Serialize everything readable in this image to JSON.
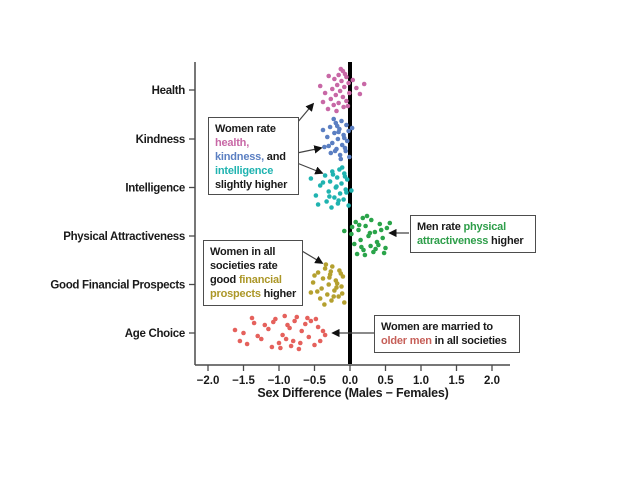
{
  "chart_data": {
    "type": "scatter",
    "title": "",
    "xlabel": "Sex Difference (Males − Females)",
    "xlim": [
      -2.2,
      2.25
    ],
    "x_ticks": [
      -2.0,
      -1.5,
      -1.0,
      -0.5,
      0.0,
      0.5,
      1.0,
      1.5,
      2.0
    ],
    "x_tick_labels": [
      "−2.0",
      "−1.5",
      "−1.0",
      "−0.5",
      "0.0",
      "0.5",
      "1.0",
      "1.5",
      "2.0"
    ],
    "zero_line_x": 0.0,
    "grid": false,
    "legend": "none",
    "categories": [
      "Health",
      "Kindness",
      "Intelligence",
      "Physical Attractiveness",
      "Good Financial Prospects",
      "Age Choice"
    ],
    "series": [
      {
        "name": "Health",
        "color": "#c868a6",
        "points": [
          [
            -0.1,
            -19
          ],
          [
            -0.16,
            -15
          ],
          [
            -0.05,
            -13
          ],
          [
            -0.22,
            -11
          ],
          [
            -0.12,
            -9
          ],
          [
            -0.3,
            -14
          ],
          [
            -0.02,
            -7
          ],
          [
            -0.18,
            -5
          ],
          [
            -0.08,
            -3
          ],
          [
            -0.25,
            -1
          ],
          [
            -0.14,
            1
          ],
          [
            -0.01,
            3
          ],
          [
            -0.2,
            5
          ],
          [
            -0.35,
            3
          ],
          [
            -0.1,
            7
          ],
          [
            -0.27,
            9
          ],
          [
            -0.05,
            11
          ],
          [
            -0.16,
            13
          ],
          [
            -0.23,
            15
          ],
          [
            -0.09,
            17
          ],
          [
            -0.31,
            19
          ],
          [
            -0.13,
            -21
          ],
          [
            0.04,
            -10
          ],
          [
            0.09,
            -2
          ],
          [
            0.14,
            4
          ],
          [
            -0.42,
            -4
          ],
          [
            -0.38,
            12
          ],
          [
            -0.03,
            16
          ],
          [
            -0.19,
            21
          ],
          [
            -0.07,
            -16
          ],
          [
            0.2,
            -6
          ]
        ]
      },
      {
        "name": "Kindness",
        "color": "#5b7fc2",
        "points": [
          [
            -0.12,
            -18
          ],
          [
            -0.2,
            -16
          ],
          [
            -0.05,
            -14
          ],
          [
            -0.28,
            -12
          ],
          [
            -0.15,
            -10
          ],
          [
            -0.02,
            -8
          ],
          [
            -0.22,
            -6
          ],
          [
            -0.09,
            -4
          ],
          [
            -0.32,
            -2
          ],
          [
            -0.17,
            0
          ],
          [
            -0.04,
            2
          ],
          [
            -0.25,
            4
          ],
          [
            -0.11,
            6
          ],
          [
            -0.36,
            8
          ],
          [
            -0.19,
            10
          ],
          [
            -0.06,
            12
          ],
          [
            -0.27,
            14
          ],
          [
            -0.14,
            16
          ],
          [
            -0.01,
            18
          ],
          [
            -0.23,
            -20
          ],
          [
            -0.08,
            -1
          ],
          [
            -0.3,
            7
          ],
          [
            -0.16,
            -7
          ],
          [
            0.03,
            -11
          ],
          [
            -0.13,
            20
          ],
          [
            -0.21,
            12
          ],
          [
            -0.38,
            -9
          ],
          [
            -0.07,
            9
          ],
          [
            -0.18,
            -13
          ]
        ]
      },
      {
        "name": "Intelligence",
        "color": "#1fb3b0",
        "points": [
          [
            -0.15,
            -18
          ],
          [
            -0.25,
            -16
          ],
          [
            -0.08,
            -14
          ],
          [
            -0.35,
            -12
          ],
          [
            -0.18,
            -10
          ],
          [
            -0.04,
            -8
          ],
          [
            -0.28,
            -6
          ],
          [
            -0.12,
            -4
          ],
          [
            -0.42,
            -2
          ],
          [
            -0.2,
            0
          ],
          [
            -0.06,
            2
          ],
          [
            -0.3,
            4
          ],
          [
            -0.14,
            6
          ],
          [
            -0.48,
            8
          ],
          [
            -0.22,
            10
          ],
          [
            -0.09,
            12
          ],
          [
            -0.33,
            14
          ],
          [
            -0.17,
            16
          ],
          [
            -0.02,
            18
          ],
          [
            -0.26,
            20
          ],
          [
            -0.11,
            -20
          ],
          [
            -0.38,
            -5
          ],
          [
            -0.55,
            -9
          ],
          [
            -0.19,
            -1
          ],
          [
            -0.05,
            5
          ],
          [
            -0.29,
            9
          ],
          [
            -0.16,
            13
          ],
          [
            -0.45,
            17
          ],
          [
            -0.07,
            -11
          ],
          [
            -0.24,
            -13
          ],
          [
            0.02,
            3
          ]
        ]
      },
      {
        "name": "Physical Attractiveness",
        "color": "#2aa44a",
        "points": [
          [
            0.18,
            -18
          ],
          [
            0.3,
            -16
          ],
          [
            0.08,
            -14
          ],
          [
            0.42,
            -12
          ],
          [
            0.22,
            -10
          ],
          [
            0.52,
            -8
          ],
          [
            0.12,
            -6
          ],
          [
            0.35,
            -4
          ],
          [
            0.02,
            -2
          ],
          [
            0.26,
            0
          ],
          [
            0.46,
            2
          ],
          [
            0.15,
            4
          ],
          [
            0.38,
            6
          ],
          [
            0.06,
            8
          ],
          [
            0.29,
            10
          ],
          [
            0.5,
            12
          ],
          [
            0.19,
            14
          ],
          [
            0.33,
            16
          ],
          [
            0.1,
            18
          ],
          [
            0.24,
            -20
          ],
          [
            0.44,
            -6
          ],
          [
            0.56,
            -13
          ],
          [
            0.03,
            -9
          ],
          [
            0.28,
            -3
          ],
          [
            0.4,
            9
          ],
          [
            0.16,
            11
          ],
          [
            0.21,
            19
          ],
          [
            0.36,
            13
          ],
          [
            -0.08,
            -5
          ],
          [
            0.48,
            17
          ],
          [
            0.13,
            -11
          ]
        ]
      },
      {
        "name": "Good Financial Prospects",
        "color": "#b4a02f",
        "points": [
          [
            -0.25,
            -18
          ],
          [
            -0.35,
            -16
          ],
          [
            -0.15,
            -14
          ],
          [
            -0.45,
            -12
          ],
          [
            -0.28,
            -10
          ],
          [
            -0.1,
            -8
          ],
          [
            -0.38,
            -6
          ],
          [
            -0.2,
            -4
          ],
          [
            -0.52,
            -2
          ],
          [
            -0.3,
            0
          ],
          [
            -0.12,
            2
          ],
          [
            -0.4,
            4
          ],
          [
            -0.22,
            6
          ],
          [
            -0.55,
            8
          ],
          [
            -0.32,
            10
          ],
          [
            -0.16,
            12
          ],
          [
            -0.42,
            14
          ],
          [
            -0.26,
            16
          ],
          [
            -0.08,
            18
          ],
          [
            -0.34,
            -20
          ],
          [
            -0.18,
            -1
          ],
          [
            -0.46,
            7
          ],
          [
            -0.29,
            -7
          ],
          [
            -0.13,
            -11
          ],
          [
            -0.36,
            20
          ],
          [
            -0.23,
            12
          ],
          [
            -0.5,
            -9
          ],
          [
            -0.11,
            9
          ],
          [
            -0.27,
            -13
          ],
          [
            -0.19,
            3
          ]
        ]
      },
      {
        "name": "Age Choice",
        "color": "#e5615c",
        "points": [
          [
            -0.75,
            -16
          ],
          [
            -1.05,
            -14
          ],
          [
            -0.55,
            -12
          ],
          [
            -1.35,
            -10
          ],
          [
            -0.88,
            -8
          ],
          [
            -0.45,
            -6
          ],
          [
            -1.15,
            -4
          ],
          [
            -0.68,
            -2
          ],
          [
            -1.5,
            0
          ],
          [
            -0.95,
            2
          ],
          [
            -0.58,
            4
          ],
          [
            -1.25,
            6
          ],
          [
            -0.8,
            8
          ],
          [
            -1.62,
            -3
          ],
          [
            -1.0,
            10
          ],
          [
            -0.5,
            12
          ],
          [
            -1.1,
            14
          ],
          [
            -0.72,
            16
          ],
          [
            -0.38,
            -2
          ],
          [
            -0.92,
            -17
          ],
          [
            -0.63,
            -9
          ],
          [
            -1.3,
            3
          ],
          [
            -0.85,
            -5
          ],
          [
            -0.42,
            8
          ],
          [
            -1.45,
            11
          ],
          [
            -0.98,
            15
          ],
          [
            -0.78,
            -12
          ],
          [
            -1.2,
            -8
          ],
          [
            -0.6,
            -15
          ],
          [
            -0.35,
            2
          ],
          [
            -1.55,
            8
          ],
          [
            -0.9,
            6
          ],
          [
            -0.7,
            10
          ],
          [
            -1.08,
            -11
          ],
          [
            -0.48,
            -14
          ],
          [
            -0.83,
            13
          ],
          [
            -1.38,
            -15
          ]
        ]
      }
    ]
  },
  "annotations": [
    {
      "name": "women-rate-health-kindness-intelligence",
      "lines": [
        [
          {
            "t": "Women rate"
          }
        ],
        [
          {
            "t": "health,",
            "c": "#c868a6"
          }
        ],
        [
          {
            "t": "kindness,",
            "c": "#5b7fc2"
          },
          {
            "t": " and"
          }
        ],
        [
          {
            "t": "intelligence",
            "c": "#1fb3b0"
          }
        ],
        [
          {
            "t": "slightly higher"
          }
        ]
      ]
    },
    {
      "name": "men-rate-physical-attractiveness",
      "lines": [
        [
          {
            "t": "Men rate "
          },
          {
            "t": "physical",
            "c": "#2e9e4a"
          }
        ],
        [
          {
            "t": "attractiveness",
            "c": "#2e9e4a"
          },
          {
            "t": " higher"
          }
        ]
      ]
    },
    {
      "name": "women-rate-financial-prospects",
      "lines": [
        [
          {
            "t": "Women in all"
          }
        ],
        [
          {
            "t": "societies rate"
          }
        ],
        [
          {
            "t": "good "
          },
          {
            "t": "financial",
            "c": "#ac9728"
          }
        ],
        [
          {
            "t": "prospects",
            "c": "#ac9728"
          },
          {
            "t": " higher"
          }
        ]
      ]
    },
    {
      "name": "women-married-older-men",
      "lines": [
        [
          {
            "t": "Women are married to"
          }
        ],
        [
          {
            "t": "older men",
            "c": "#c65f58"
          },
          {
            "t": " in all societies"
          }
        ]
      ]
    }
  ],
  "style_colors": {
    "axis": "#4a4a4a",
    "zero_line": "#000000",
    "arrow": "#444444",
    "text": "#1a1a1a"
  }
}
